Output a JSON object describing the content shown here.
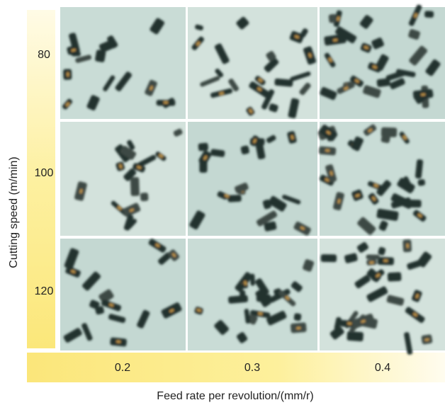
{
  "y_axis": {
    "title": "Cutting speed (m/min)",
    "labels": [
      "80",
      "100",
      "120"
    ]
  },
  "x_axis": {
    "title": "Feed rate per revolution/(mm/r)",
    "labels": [
      "0.2",
      "0.3",
      "0.4"
    ]
  }
}
